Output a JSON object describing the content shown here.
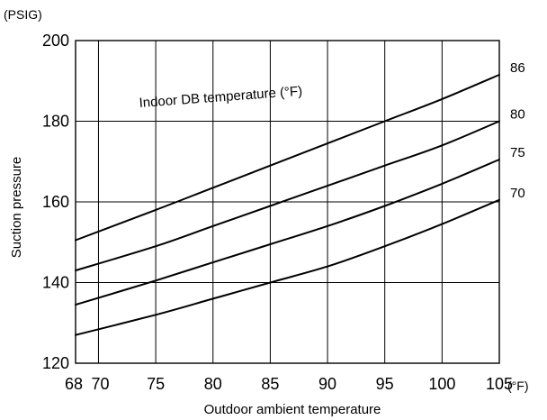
{
  "chart_data": {
    "type": "line",
    "title": "",
    "xlabel": "Outdoor ambient temperature",
    "ylabel": "Suction pressure",
    "x_unit": "(°F)",
    "y_unit": "(PSIG)",
    "xlim": [
      68,
      105
    ],
    "ylim": [
      120,
      200
    ],
    "x_ticks": [
      68,
      70,
      75,
      80,
      85,
      90,
      95,
      100,
      105
    ],
    "x_tick_labels": [
      "68",
      "70",
      "75",
      "80",
      "85",
      "90",
      "95",
      "100",
      "105"
    ],
    "x_gridlines": [
      70,
      75,
      80,
      85,
      90,
      95,
      100
    ],
    "y_ticks": [
      120,
      140,
      160,
      180,
      200
    ],
    "y_tick_labels": [
      "120",
      "140",
      "160",
      "180",
      "200"
    ],
    "y_gridlines": [
      140,
      160,
      180
    ],
    "grid": true,
    "annotation": "Indoor DB temperature (°F)",
    "series": [
      {
        "name": "86",
        "x": [
          68,
          75,
          80,
          85,
          90,
          95,
          100,
          105
        ],
        "y": [
          150.5,
          158,
          163.5,
          169,
          174.5,
          180,
          185.5,
          191.5
        ]
      },
      {
        "name": "80",
        "x": [
          68,
          75,
          80,
          85,
          90,
          95,
          100,
          105
        ],
        "y": [
          143,
          149,
          154,
          159,
          164,
          169,
          174,
          180
        ]
      },
      {
        "name": "75",
        "x": [
          68,
          75,
          80,
          85,
          90,
          95,
          100,
          105
        ],
        "y": [
          134.5,
          140.5,
          145,
          149.5,
          154,
          159,
          164.5,
          170.5
        ]
      },
      {
        "name": "70",
        "x": [
          68,
          75,
          80,
          85,
          90,
          95,
          100,
          105
        ],
        "y": [
          127,
          132,
          136,
          140,
          144,
          149,
          154.5,
          160.5
        ]
      }
    ]
  }
}
